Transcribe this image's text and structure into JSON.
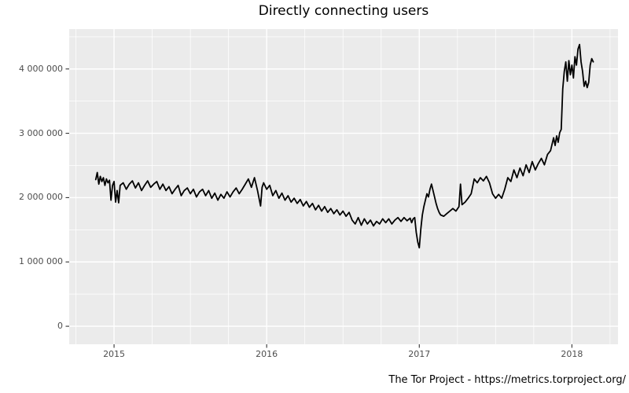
{
  "title": "Directly connecting users",
  "footer": "The Tor Project - https://metrics.torproject.org/",
  "colors": {
    "page_bg": "#FFFFFF",
    "panel_bg": "#EBEBEB",
    "grid": "#FFFFFF",
    "line": "#000000",
    "axis_text": "#4D4D4D",
    "tick": "#333333",
    "title_text": "#000000"
  },
  "chart_data": {
    "type": "line",
    "title": "Directly connecting users",
    "xlabel": "",
    "ylabel": "",
    "grid": "on",
    "legend": "none",
    "xlim": [
      2014.706,
      2018.302
    ],
    "ylim": [
      -280000,
      4620000
    ],
    "x_major_ticks": [
      2015,
      2016,
      2017,
      2018
    ],
    "x_tick_labels": [
      "2015",
      "2016",
      "2017",
      "2018"
    ],
    "x_minor_ticks": [
      2014.75,
      2015.25,
      2015.5,
      2015.75,
      2016.25,
      2016.5,
      2016.75,
      2017.25,
      2017.5,
      2017.75,
      2018.25
    ],
    "y_major_ticks": [
      0,
      1000000,
      2000000,
      3000000,
      4000000
    ],
    "y_tick_labels": [
      "0",
      "1 000 000",
      "2 000 000",
      "3 000 000",
      "4 000 000"
    ],
    "y_minor_ticks": [
      500000,
      1500000,
      2500000,
      3500000,
      4500000
    ],
    "series": [
      {
        "name": "directly_connecting_users",
        "points": [
          [
            2014.88,
            2280000
          ],
          [
            2014.89,
            2390000
          ],
          [
            2014.9,
            2210000
          ],
          [
            2014.91,
            2330000
          ],
          [
            2014.92,
            2250000
          ],
          [
            2014.93,
            2310000
          ],
          [
            2014.94,
            2190000
          ],
          [
            2014.95,
            2290000
          ],
          [
            2014.96,
            2230000
          ],
          [
            2014.97,
            2270000
          ],
          [
            2014.98,
            1960000
          ],
          [
            2014.99,
            2190000
          ],
          [
            2015.0,
            2250000
          ],
          [
            2015.01,
            1930000
          ],
          [
            2015.02,
            2110000
          ],
          [
            2015.03,
            1920000
          ],
          [
            2015.04,
            2190000
          ],
          [
            2015.06,
            2230000
          ],
          [
            2015.08,
            2130000
          ],
          [
            2015.1,
            2210000
          ],
          [
            2015.12,
            2260000
          ],
          [
            2015.14,
            2150000
          ],
          [
            2015.16,
            2230000
          ],
          [
            2015.18,
            2110000
          ],
          [
            2015.2,
            2190000
          ],
          [
            2015.22,
            2260000
          ],
          [
            2015.24,
            2160000
          ],
          [
            2015.26,
            2210000
          ],
          [
            2015.28,
            2250000
          ],
          [
            2015.3,
            2130000
          ],
          [
            2015.32,
            2210000
          ],
          [
            2015.34,
            2110000
          ],
          [
            2015.36,
            2170000
          ],
          [
            2015.38,
            2060000
          ],
          [
            2015.4,
            2130000
          ],
          [
            2015.42,
            2190000
          ],
          [
            2015.44,
            2030000
          ],
          [
            2015.46,
            2110000
          ],
          [
            2015.48,
            2150000
          ],
          [
            2015.5,
            2060000
          ],
          [
            2015.52,
            2130000
          ],
          [
            2015.54,
            2010000
          ],
          [
            2015.56,
            2090000
          ],
          [
            2015.58,
            2130000
          ],
          [
            2015.6,
            2030000
          ],
          [
            2015.62,
            2110000
          ],
          [
            2015.64,
            1990000
          ],
          [
            2015.66,
            2070000
          ],
          [
            2015.68,
            1960000
          ],
          [
            2015.7,
            2050000
          ],
          [
            2015.72,
            1990000
          ],
          [
            2015.74,
            2090000
          ],
          [
            2015.76,
            2010000
          ],
          [
            2015.78,
            2090000
          ],
          [
            2015.8,
            2150000
          ],
          [
            2015.82,
            2060000
          ],
          [
            2015.84,
            2130000
          ],
          [
            2015.86,
            2210000
          ],
          [
            2015.88,
            2290000
          ],
          [
            2015.9,
            2160000
          ],
          [
            2015.92,
            2310000
          ],
          [
            2015.94,
            2110000
          ],
          [
            2015.96,
            1870000
          ],
          [
            2015.97,
            2160000
          ],
          [
            2015.98,
            2230000
          ],
          [
            2016.0,
            2130000
          ],
          [
            2016.02,
            2190000
          ],
          [
            2016.04,
            2030000
          ],
          [
            2016.06,
            2110000
          ],
          [
            2016.08,
            1990000
          ],
          [
            2016.1,
            2070000
          ],
          [
            2016.12,
            1960000
          ],
          [
            2016.14,
            2030000
          ],
          [
            2016.16,
            1930000
          ],
          [
            2016.18,
            1990000
          ],
          [
            2016.2,
            1910000
          ],
          [
            2016.22,
            1970000
          ],
          [
            2016.24,
            1870000
          ],
          [
            2016.26,
            1940000
          ],
          [
            2016.28,
            1850000
          ],
          [
            2016.3,
            1910000
          ],
          [
            2016.32,
            1810000
          ],
          [
            2016.34,
            1880000
          ],
          [
            2016.36,
            1790000
          ],
          [
            2016.38,
            1860000
          ],
          [
            2016.4,
            1770000
          ],
          [
            2016.42,
            1830000
          ],
          [
            2016.44,
            1750000
          ],
          [
            2016.46,
            1810000
          ],
          [
            2016.48,
            1730000
          ],
          [
            2016.5,
            1790000
          ],
          [
            2016.52,
            1710000
          ],
          [
            2016.54,
            1770000
          ],
          [
            2016.56,
            1650000
          ],
          [
            2016.58,
            1590000
          ],
          [
            2016.6,
            1690000
          ],
          [
            2016.62,
            1570000
          ],
          [
            2016.64,
            1670000
          ],
          [
            2016.66,
            1590000
          ],
          [
            2016.68,
            1650000
          ],
          [
            2016.7,
            1560000
          ],
          [
            2016.72,
            1630000
          ],
          [
            2016.74,
            1590000
          ],
          [
            2016.76,
            1670000
          ],
          [
            2016.78,
            1610000
          ],
          [
            2016.8,
            1670000
          ],
          [
            2016.82,
            1590000
          ],
          [
            2016.84,
            1650000
          ],
          [
            2016.86,
            1690000
          ],
          [
            2016.88,
            1630000
          ],
          [
            2016.9,
            1690000
          ],
          [
            2016.92,
            1640000
          ],
          [
            2016.94,
            1680000
          ],
          [
            2016.95,
            1610000
          ],
          [
            2016.96,
            1670000
          ],
          [
            2016.97,
            1690000
          ],
          [
            2016.98,
            1460000
          ],
          [
            2016.99,
            1310000
          ],
          [
            2017.0,
            1220000
          ],
          [
            2017.01,
            1510000
          ],
          [
            2017.02,
            1730000
          ],
          [
            2017.03,
            1860000
          ],
          [
            2017.04,
            1960000
          ],
          [
            2017.05,
            2060000
          ],
          [
            2017.06,
            2010000
          ],
          [
            2017.07,
            2130000
          ],
          [
            2017.08,
            2210000
          ],
          [
            2017.09,
            2110000
          ],
          [
            2017.1,
            2010000
          ],
          [
            2017.11,
            1910000
          ],
          [
            2017.12,
            1830000
          ],
          [
            2017.13,
            1770000
          ],
          [
            2017.14,
            1730000
          ],
          [
            2017.16,
            1710000
          ],
          [
            2017.18,
            1750000
          ],
          [
            2017.2,
            1790000
          ],
          [
            2017.22,
            1830000
          ],
          [
            2017.24,
            1790000
          ],
          [
            2017.26,
            1860000
          ],
          [
            2017.27,
            2210000
          ],
          [
            2017.28,
            1890000
          ],
          [
            2017.3,
            1930000
          ],
          [
            2017.32,
            1990000
          ],
          [
            2017.34,
            2060000
          ],
          [
            2017.36,
            2290000
          ],
          [
            2017.38,
            2230000
          ],
          [
            2017.4,
            2310000
          ],
          [
            2017.42,
            2260000
          ],
          [
            2017.44,
            2330000
          ],
          [
            2017.46,
            2230000
          ],
          [
            2017.48,
            2060000
          ],
          [
            2017.5,
            1990000
          ],
          [
            2017.52,
            2050000
          ],
          [
            2017.54,
            1990000
          ],
          [
            2017.56,
            2130000
          ],
          [
            2017.58,
            2310000
          ],
          [
            2017.6,
            2250000
          ],
          [
            2017.62,
            2430000
          ],
          [
            2017.64,
            2310000
          ],
          [
            2017.66,
            2460000
          ],
          [
            2017.68,
            2340000
          ],
          [
            2017.7,
            2510000
          ],
          [
            2017.72,
            2390000
          ],
          [
            2017.74,
            2560000
          ],
          [
            2017.76,
            2430000
          ],
          [
            2017.78,
            2530000
          ],
          [
            2017.8,
            2610000
          ],
          [
            2017.82,
            2510000
          ],
          [
            2017.84,
            2670000
          ],
          [
            2017.86,
            2730000
          ],
          [
            2017.88,
            2930000
          ],
          [
            2017.89,
            2810000
          ],
          [
            2017.9,
            2960000
          ],
          [
            2017.91,
            2860000
          ],
          [
            2017.92,
            3010000
          ],
          [
            2017.93,
            3060000
          ],
          [
            2017.94,
            3690000
          ],
          [
            2017.95,
            3960000
          ],
          [
            2017.96,
            4110000
          ],
          [
            2017.97,
            3810000
          ],
          [
            2017.98,
            4130000
          ],
          [
            2017.99,
            3910000
          ],
          [
            2018.0,
            4060000
          ],
          [
            2018.01,
            3860000
          ],
          [
            2018.02,
            4190000
          ],
          [
            2018.03,
            4060000
          ],
          [
            2018.04,
            4310000
          ],
          [
            2018.05,
            4380000
          ],
          [
            2018.06,
            4110000
          ],
          [
            2018.07,
            3960000
          ],
          [
            2018.08,
            3730000
          ],
          [
            2018.09,
            3810000
          ],
          [
            2018.1,
            3710000
          ],
          [
            2018.11,
            3790000
          ],
          [
            2018.12,
            4060000
          ],
          [
            2018.13,
            4160000
          ],
          [
            2018.14,
            4110000
          ]
        ]
      }
    ]
  }
}
